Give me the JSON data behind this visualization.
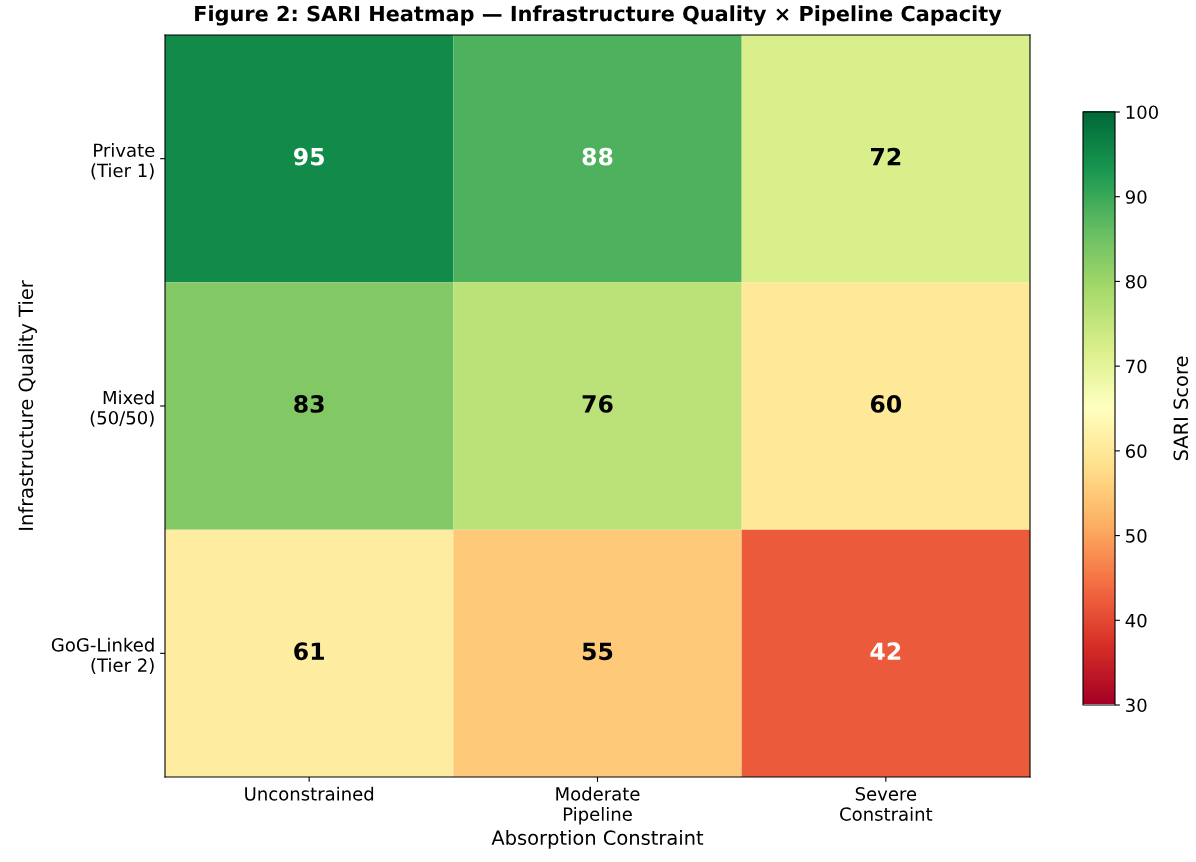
{
  "chart_data": {
    "type": "heatmap",
    "title": "Figure 2: SARI Heatmap — Infrastructure Quality × Pipeline Capacity",
    "xlabel": "Absorption Constraint",
    "ylabel": "Infrastructure Quality Tier",
    "clabel": "SARI Score",
    "categories": [
      "Unconstrained",
      "Moderate\nPipeline",
      "Severe\nConstraint"
    ],
    "y_categories": [
      "Private\n(Tier 1)",
      "Mixed\n(50/50)",
      "GoG-Linked\n(Tier 2)"
    ],
    "cells": [
      [
        95,
        88,
        72
      ],
      [
        83,
        76,
        60
      ],
      [
        61,
        55,
        42
      ]
    ],
    "clim": [
      30,
      100
    ],
    "cticks": [
      30,
      40,
      50,
      60,
      70,
      80,
      90,
      100
    ],
    "data_labels": true,
    "grid": false,
    "legend": false
  }
}
